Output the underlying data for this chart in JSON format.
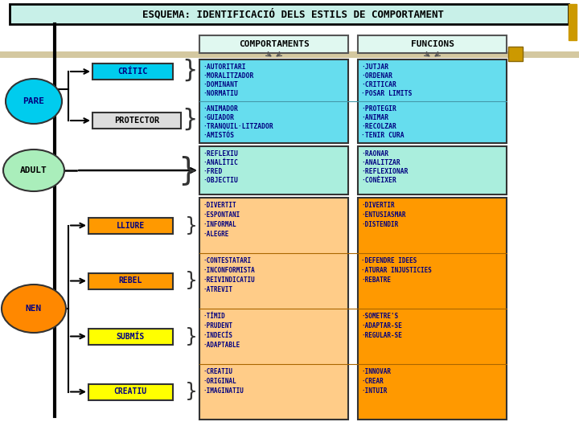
{
  "title": "ESQUEMA: IDENTIFICACIÓ DELS ESTILS DE COMPORTAMENT",
  "title_bg": "#c8f0e8",
  "title_border": "#000000",
  "title_border_right": "#cc9900",
  "background": "#ffffff",
  "col_header_comportaments": "COMPORTAMENTS",
  "col_header_funcions": "FUNCIONS",
  "col_header_bg": "#e0f8f0",
  "col_header_border": "#888888",
  "pare_comp_bg_top": "#55ddee",
  "pare_comp_bg_bot": "#88eeff",
  "pare_func_bg_top": "#55ddee",
  "pare_func_bg_bot": "#88eeff",
  "adult_comp_bg": "#b8f0cc",
  "adult_func_bg": "#b8f0cc",
  "nen_comp_bg": "#ffcc88",
  "nen_func_bg": "#ff9900",
  "gold_color": "#cc9900",
  "beige_stripe": "#d4c8a0",
  "sections_colors": {
    "PARE_bubble": "#00ccee",
    "ADULT_bubble": "#aaeebb",
    "NEN_bubble": "#ff8800",
    "CRITIC_box": "#00ccee",
    "PROTECTOR_box": "#dddddd",
    "LLIURE_box": "#ff9900",
    "REBEL_box": "#ff9900",
    "SUBMIS_box": "#ffff00",
    "CREATIU_box": "#ffff00"
  },
  "critic_comp": [
    "·AUTORITARI",
    "·MORALITZADOR",
    "·DOMINANT",
    "·NORMATIU"
  ],
  "critic_func": [
    "·JUTJAR",
    "·ORDENAR",
    "·CRITICAR",
    "·POSAR LIMITS"
  ],
  "prot_comp": [
    "·ANIMADOR",
    "·GUIADOR",
    "·TRANQUIL·LITZADOR",
    "·AMISTÓS"
  ],
  "prot_func": [
    "·PROTEGIR",
    "·ANIMAR",
    "·RECOLZAR",
    "·TENIR CURA"
  ],
  "adult_comp": [
    "·REFLEXIU",
    "·ANALÍTIC",
    "·FRED",
    "·OBJECTIU"
  ],
  "adult_func": [
    "·RAONAR",
    "·ANALITZAR",
    "·REFLEXIONAR",
    "·CONÈIXER"
  ],
  "lliure_comp": [
    "·DIVERTIT",
    "·ESPONTANI",
    "·INFORMAL",
    "·ALEGRE"
  ],
  "lliure_func": [
    "·DIVERTIR",
    "·ENTUSIASMAR",
    "·DISTENDIR"
  ],
  "rebel_comp": [
    "·CONTESTATARI",
    "·INCONFORMISTA",
    "·REIVINDICATIU",
    "·ATREVIT"
  ],
  "rebel_func": [
    "·DEFENDRE IDEES",
    "·ATURAR INJUSTICIES",
    "·REBATRE"
  ],
  "submis_comp": [
    "·TÍMID",
    "·PRUDENT",
    "·INDECÍS",
    "·ADAPTABLE"
  ],
  "submis_func": [
    "·SOMETRE'S",
    "·ADAPTAR-SE",
    "·REGULAR-SE"
  ],
  "creatiu_comp": [
    "·CREATIU",
    "·ORIGINAL",
    "·IMAGINATIU"
  ],
  "creatiu_func": [
    "·INNOVAR",
    "·CREAR",
    "·INTUIR"
  ]
}
